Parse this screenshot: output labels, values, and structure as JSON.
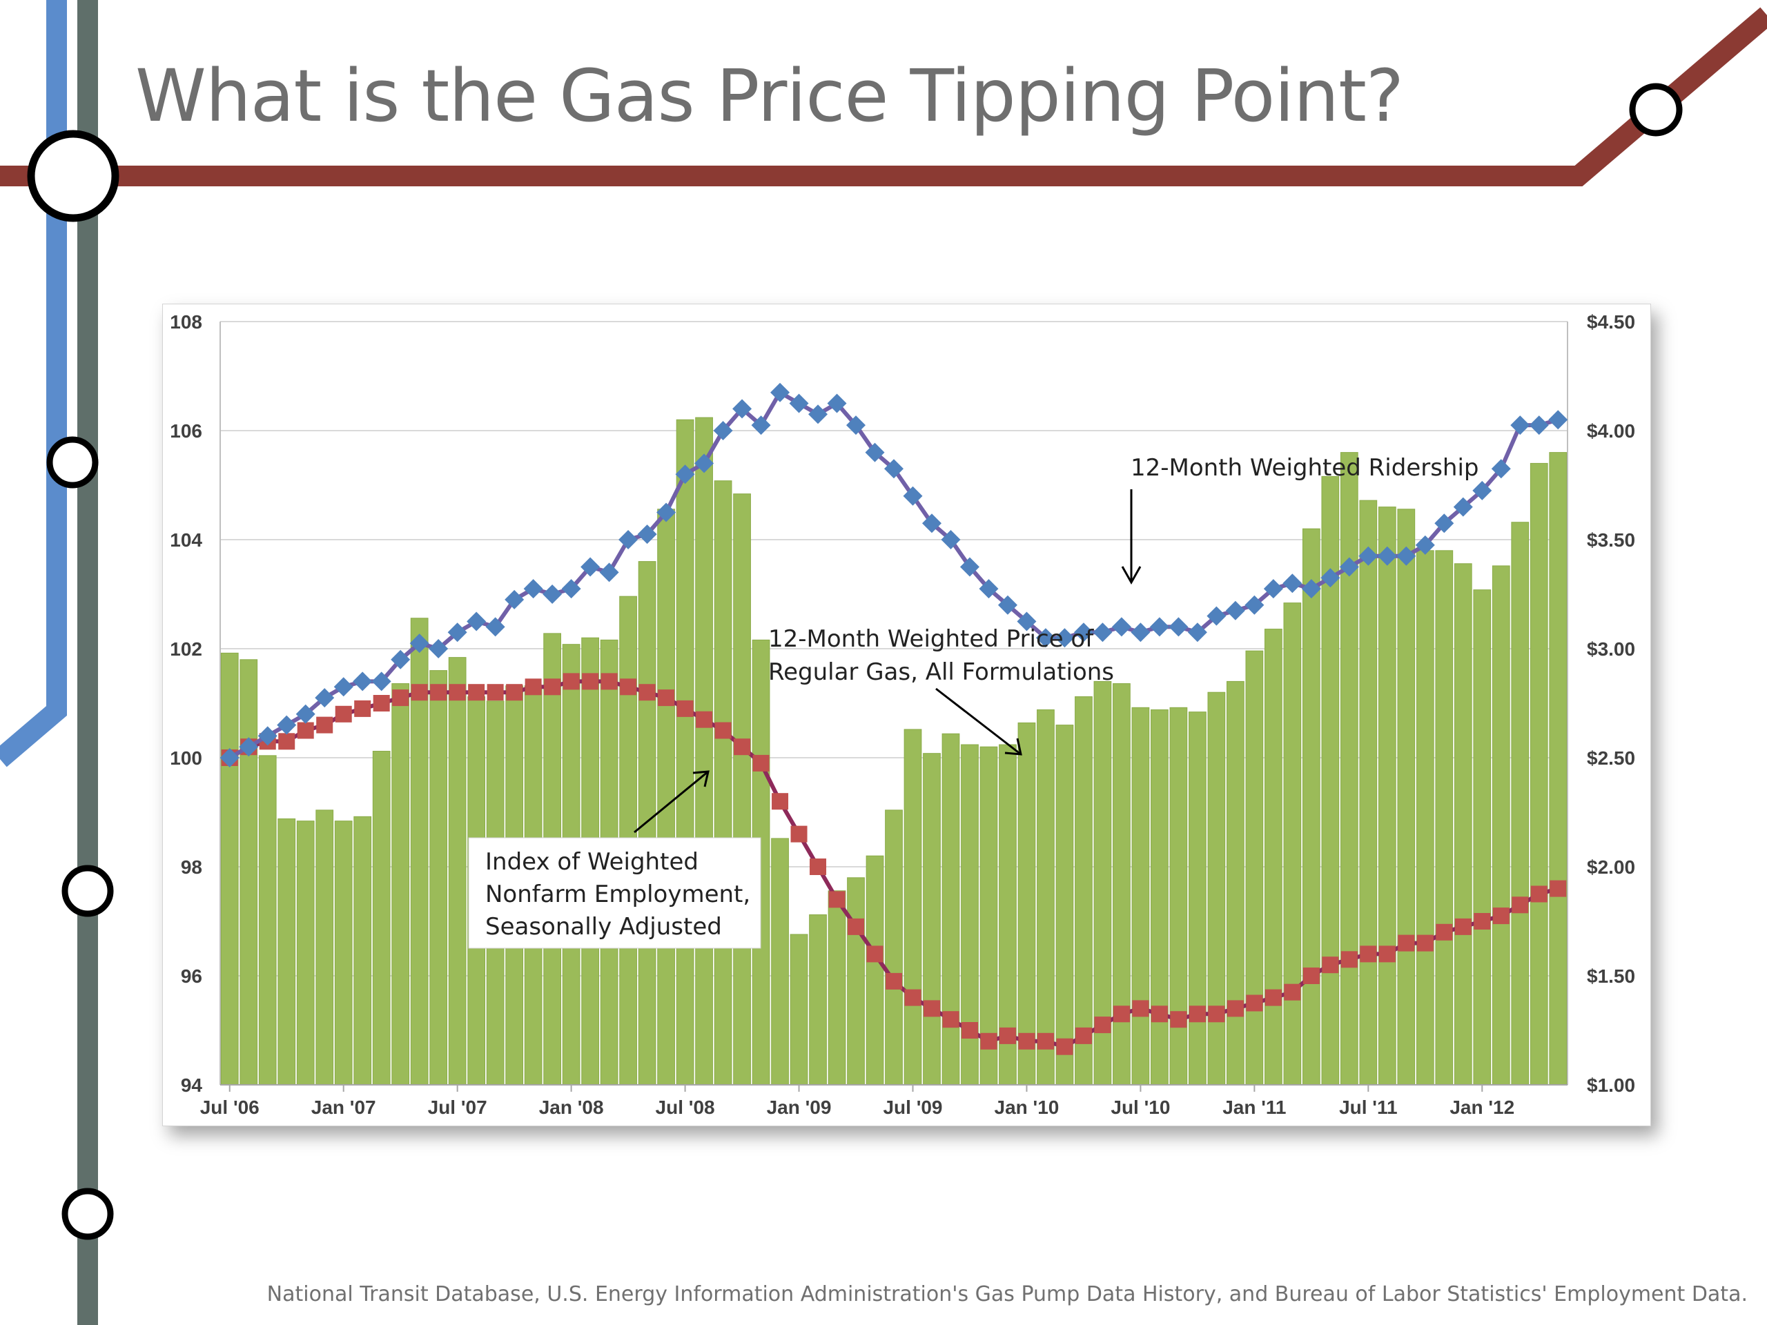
{
  "slide": {
    "title": "What is the Gas Price Tipping Point?",
    "source": "National Transit Database, U.S. Energy Information Administration's Gas Pump Data History, and Bureau of Labor Statistics' Employment Data."
  },
  "colors": {
    "bar": "#9bbb59",
    "bar_edge": "#8aab48",
    "ridership": "#4f81bd",
    "ridership_line": "#7060a8",
    "employment": "#c0504d",
    "employment_line": "#8e2a5a",
    "metro_red": "#8b3a33",
    "metro_blue": "#5b8ccc",
    "metro_gray": "#5f6f6a"
  },
  "icons": [
    "metro-line-stop-icon"
  ],
  "chart_data": {
    "type": "bar",
    "title": "",
    "xlabel": "",
    "ylabel": "",
    "ylim": [
      94,
      108
    ],
    "y_ticks": [
      "108",
      "106",
      "104",
      "102",
      "100",
      "98",
      "96",
      "94"
    ],
    "y2lim": [
      1.0,
      4.5
    ],
    "y2_ticks": [
      "$4.50",
      "$4.00",
      "$3.50",
      "$3.00",
      "$2.50",
      "$2.00",
      "$1.50",
      "$1.00"
    ],
    "grid": true,
    "x_labels": [
      {
        "index": 0,
        "text": "Jul '06"
      },
      {
        "index": 6,
        "text": "Jan '07"
      },
      {
        "index": 12,
        "text": "Jul '07"
      },
      {
        "index": 18,
        "text": "Jan '08"
      },
      {
        "index": 24,
        "text": "Jul '08"
      },
      {
        "index": 30,
        "text": "Jan '09"
      },
      {
        "index": 36,
        "text": "Jul '09"
      },
      {
        "index": 42,
        "text": "Jan '10"
      },
      {
        "index": 48,
        "text": "Jul '10"
      },
      {
        "index": 54,
        "text": "Jan '11"
      },
      {
        "index": 60,
        "text": "Jul '11"
      },
      {
        "index": 66,
        "text": "Jan '12"
      }
    ],
    "series": [
      {
        "name": "12-Month Weighted Price of Regular Gas, All Formulations",
        "type": "bar",
        "axis": "right",
        "values": [
          2.98,
          2.95,
          2.51,
          2.22,
          2.21,
          2.26,
          2.21,
          2.23,
          2.53,
          2.84,
          3.14,
          2.9,
          2.96,
          2.78,
          2.76,
          2.83,
          2.83,
          3.07,
          3.02,
          3.05,
          3.04,
          3.24,
          3.4,
          3.64,
          4.05,
          4.06,
          3.77,
          3.71,
          3.04,
          2.13,
          1.69,
          1.78,
          1.89,
          1.95,
          2.05,
          2.26,
          2.63,
          2.52,
          2.61,
          2.56,
          2.55,
          2.56,
          2.66,
          2.72,
          2.65,
          2.78,
          2.85,
          2.84,
          2.73,
          2.72,
          2.73,
          2.71,
          2.8,
          2.85,
          2.99,
          3.09,
          3.21,
          3.55,
          3.79,
          3.9,
          3.68,
          3.65,
          3.64,
          3.45,
          3.45,
          3.39,
          3.27,
          3.38,
          3.58,
          3.85,
          3.9
        ]
      },
      {
        "name": "12-Month Weighted Ridership",
        "type": "line",
        "axis": "left",
        "values": [
          100.0,
          100.2,
          100.4,
          100.6,
          100.8,
          101.1,
          101.3,
          101.4,
          101.4,
          101.8,
          102.1,
          102.0,
          102.3,
          102.5,
          102.4,
          102.9,
          103.1,
          103.0,
          103.1,
          103.5,
          103.4,
          104.0,
          104.1,
          104.5,
          105.2,
          105.4,
          106.0,
          106.4,
          106.1,
          106.7,
          106.5,
          106.3,
          106.5,
          106.1,
          105.6,
          105.3,
          104.8,
          104.3,
          104.0,
          103.5,
          103.1,
          102.8,
          102.5,
          102.2,
          102.2,
          102.3,
          102.3,
          102.4,
          102.3,
          102.4,
          102.4,
          102.3,
          102.6,
          102.7,
          102.8,
          103.1,
          103.2,
          103.1,
          103.3,
          103.5,
          103.7,
          103.7,
          103.7,
          103.9,
          104.3,
          104.6,
          104.9,
          105.3,
          106.1,
          106.1,
          106.2
        ]
      },
      {
        "name": "Index of Weighted Nonfarm Employment, Seasonally Adjusted",
        "type": "line",
        "axis": "left",
        "values": [
          100.0,
          100.2,
          100.3,
          100.3,
          100.5,
          100.6,
          100.8,
          100.9,
          101.0,
          101.1,
          101.2,
          101.2,
          101.2,
          101.2,
          101.2,
          101.2,
          101.3,
          101.3,
          101.4,
          101.4,
          101.4,
          101.3,
          101.2,
          101.1,
          100.9,
          100.7,
          100.5,
          100.2,
          99.9,
          99.2,
          98.6,
          98.0,
          97.4,
          96.9,
          96.4,
          95.9,
          95.6,
          95.4,
          95.2,
          95.0,
          94.8,
          94.9,
          94.8,
          94.8,
          94.7,
          94.9,
          95.1,
          95.3,
          95.4,
          95.3,
          95.2,
          95.3,
          95.3,
          95.4,
          95.5,
          95.6,
          95.7,
          96.0,
          96.2,
          96.3,
          96.4,
          96.4,
          96.6,
          96.6,
          96.8,
          96.9,
          97.0,
          97.1,
          97.3,
          97.5,
          97.6
        ]
      }
    ],
    "annotations": [
      {
        "text": "12-Month Weighted Ridership"
      },
      {
        "text_lines": [
          "12-Month Weighted Price of",
          "Regular Gas, All Formulations"
        ]
      },
      {
        "text_lines": [
          "Index of Weighted",
          "Nonfarm Employment,",
          "Seasonally Adjusted"
        ]
      }
    ]
  }
}
